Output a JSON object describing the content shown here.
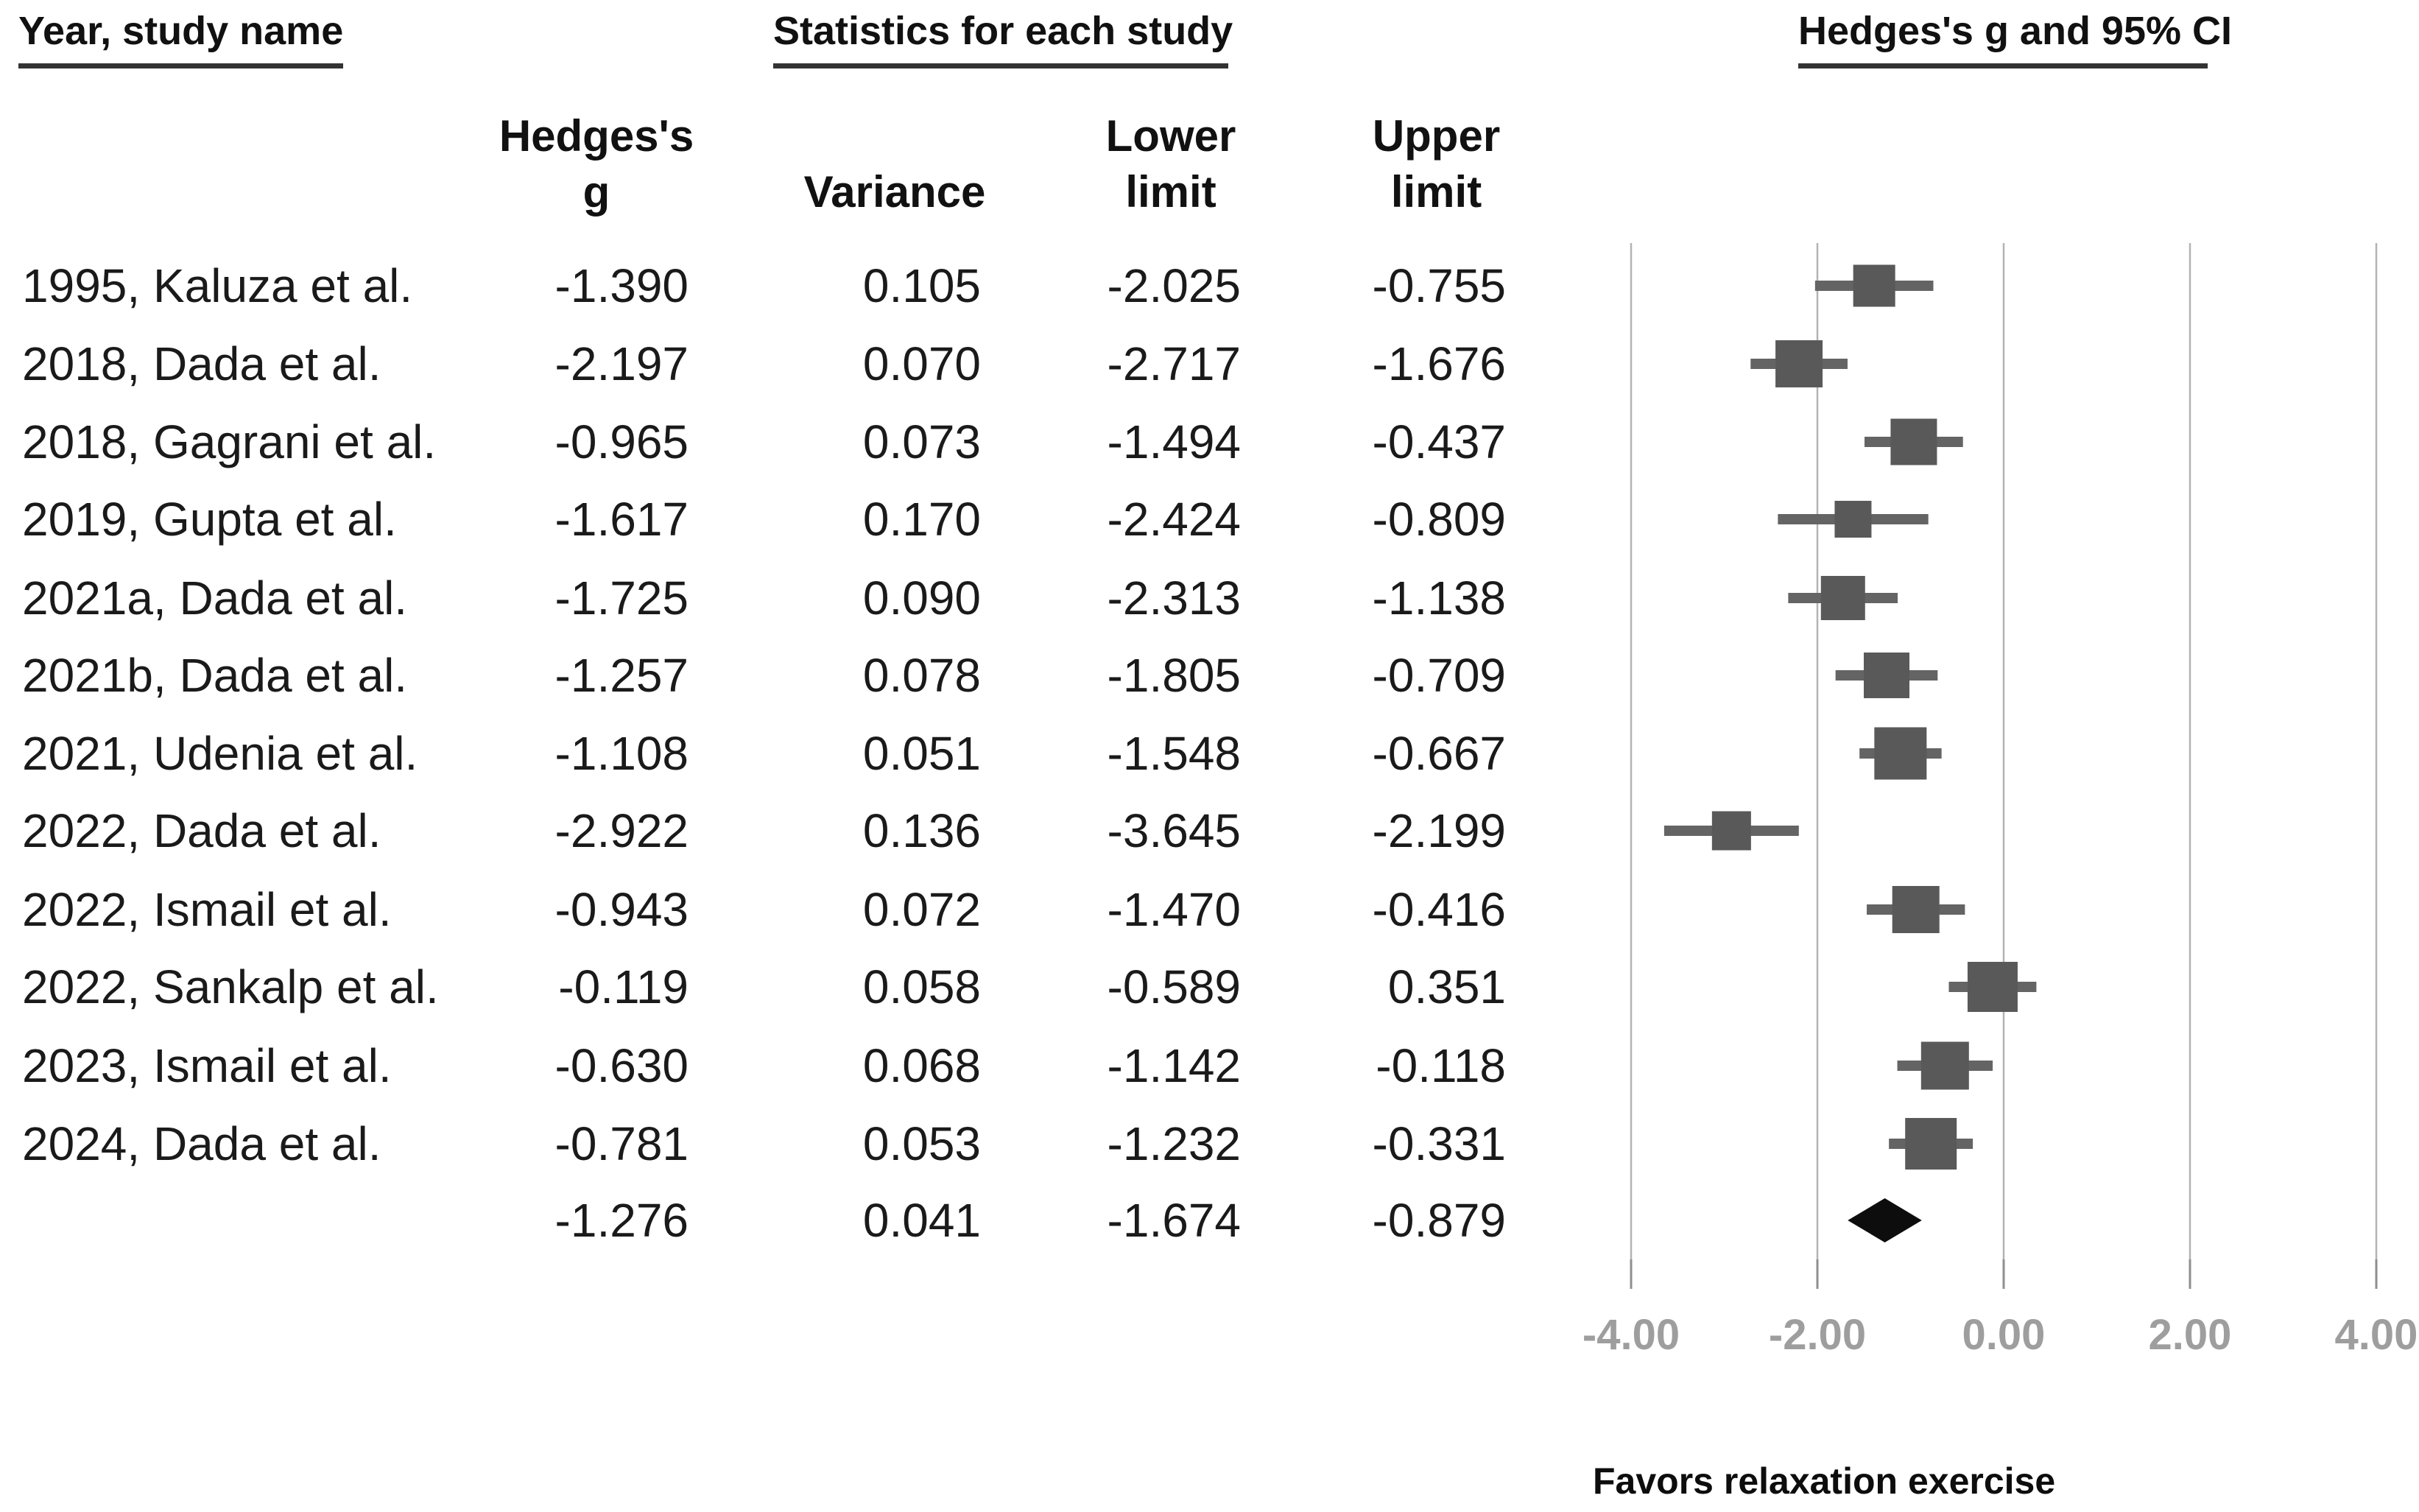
{
  "header": {
    "study_col_title": "Year, study name",
    "stats_title": "Statistics for each study",
    "plot_title": "Hedges's g and 95% CI"
  },
  "subheader": {
    "hedges_line1": "Hedges's",
    "hedges_line2": "g",
    "variance": "Variance",
    "lower_line1": "Lower",
    "lower_line2": "limit",
    "upper_line1": "Upper",
    "upper_line2": "limit"
  },
  "footer": {
    "favors_label": "Favors relaxation exercise"
  },
  "colors": {
    "effect_box": "#595959",
    "ci_whisker": "#646464",
    "summary_diamond": "#0d0d0d",
    "gridline": "#b3b3b3",
    "axis_tick": "#8f8f8f",
    "axis_label": "#9e9e9e",
    "table_text": "#1a1a1a",
    "header_underline": "#333333"
  },
  "chart_data": {
    "type": "scatter",
    "variant": "forest-plot",
    "title": "Hedges's g and 95% CI",
    "xlabel": "",
    "ylabel": "",
    "xlim": [
      -4.5,
      4.5
    ],
    "grid": true,
    "legend": false,
    "x_ticks": [
      -4.0,
      -2.0,
      0.0,
      2.0,
      4.0
    ],
    "x_tick_decimals": 2,
    "value_decimals": 3,
    "footnote": "Favors relaxation exercise",
    "columns": [
      "Year, study name",
      "Hedges's g",
      "Variance",
      "Lower limit",
      "Upper limit"
    ],
    "studies": [
      {
        "label": "1995, Kaluza et al.",
        "g": -1.39,
        "variance": 0.105,
        "lower": -2.025,
        "upper": -0.755
      },
      {
        "label": "2018, Dada et al.",
        "g": -2.197,
        "variance": 0.07,
        "lower": -2.717,
        "upper": -1.676
      },
      {
        "label": "2018, Gagrani et al.",
        "g": -0.965,
        "variance": 0.073,
        "lower": -1.494,
        "upper": -0.437
      },
      {
        "label": "2019, Gupta et al.",
        "g": -1.617,
        "variance": 0.17,
        "lower": -2.424,
        "upper": -0.809
      },
      {
        "label": "2021a, Dada et al.",
        "g": -1.725,
        "variance": 0.09,
        "lower": -2.313,
        "upper": -1.138
      },
      {
        "label": "2021b, Dada et al.",
        "g": -1.257,
        "variance": 0.078,
        "lower": -1.805,
        "upper": -0.709
      },
      {
        "label": "2021, Udenia et al.",
        "g": -1.108,
        "variance": 0.051,
        "lower": -1.548,
        "upper": -0.667
      },
      {
        "label": "2022, Dada et al.",
        "g": -2.922,
        "variance": 0.136,
        "lower": -3.645,
        "upper": -2.199
      },
      {
        "label": "2022, Ismail et al.",
        "g": -0.943,
        "variance": 0.072,
        "lower": -1.47,
        "upper": -0.416
      },
      {
        "label": "2022, Sankalp et al.",
        "g": -0.119,
        "variance": 0.058,
        "lower": -0.589,
        "upper": 0.351
      },
      {
        "label": "2023, Ismail et al.",
        "g": -0.63,
        "variance": 0.068,
        "lower": -1.142,
        "upper": -0.118
      },
      {
        "label": "2024, Dada et al.",
        "g": -0.781,
        "variance": 0.053,
        "lower": -1.232,
        "upper": -0.331
      }
    ],
    "overall": {
      "label": "",
      "g": -1.276,
      "variance": 0.041,
      "lower": -1.674,
      "upper": -0.879
    }
  }
}
